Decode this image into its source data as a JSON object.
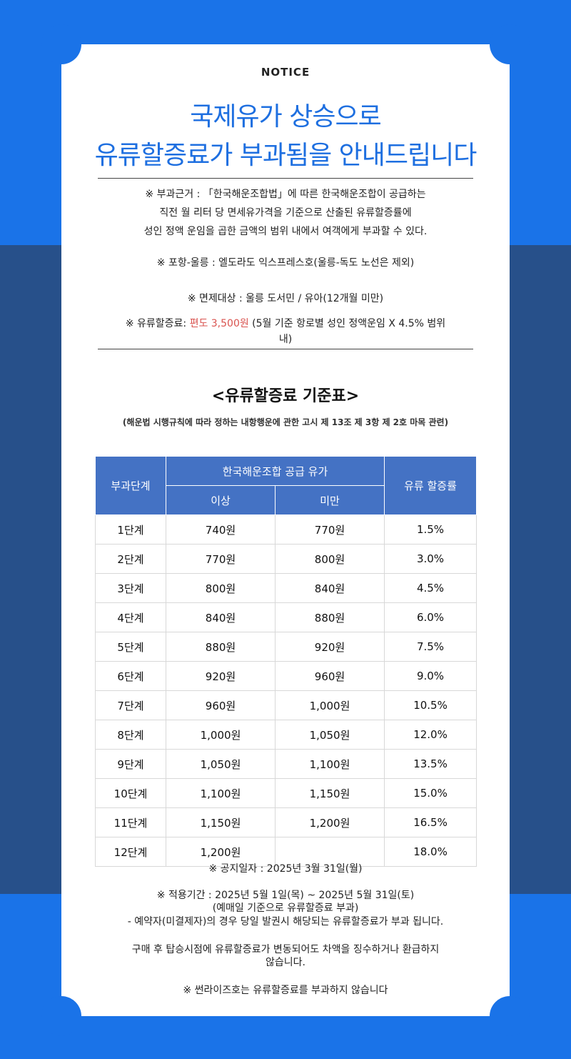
{
  "header": {
    "notice": "NOTICE",
    "title_line1": "국제유가 상승으로",
    "title_line2": "유류할증료가 부과됨을 안내드립니다"
  },
  "info": {
    "basis_line1": "※ 부과근거 : 「한국해운조합법」에 따른 한국해운조합이 공급하는",
    "basis_line2": "직전 월 리터 당 면세유가격을 기준으로 산출된 유류할증률에",
    "basis_line3": "성인 정액 운임을 곱한 금액의 범위 내에서 여객에게 부과할 수 있다.",
    "route": "※ 포항-울릉 : 엘도라도 익스프레스호(울릉-독도 노선은 제외)",
    "exempt": "※ 면제대상 : 울릉 도서민 / 유아(12개월 미만)",
    "surcharge_prefix": "※ 유류할증료: ",
    "surcharge_amount": "편도 3,500원",
    "surcharge_suffix": " (5월 기준 항로별 성인 정액운임 X 4.5% 범위",
    "surcharge_suffix2": "내)"
  },
  "table": {
    "title": "<유류할증료 기준표>",
    "note": "(해운법 시행규칙에 따라 정하는 내항행운에 관한 고시 제 13조 제 3항 제 2호 마목 관련)",
    "headers": {
      "stage": "부과단계",
      "price": "한국해운조합 공급 유가",
      "min": "이상",
      "max": "미만",
      "rate": "유류 할증률"
    },
    "rows": [
      {
        "stage": "1단계",
        "min": "740원",
        "max": "770원",
        "rate": "1.5%"
      },
      {
        "stage": "2단계",
        "min": "770원",
        "max": "800원",
        "rate": "3.0%"
      },
      {
        "stage": "3단계",
        "min": "800원",
        "max": "840원",
        "rate": "4.5%"
      },
      {
        "stage": "4단계",
        "min": "840원",
        "max": "880원",
        "rate": "6.0%"
      },
      {
        "stage": "5단계",
        "min": "880원",
        "max": "920원",
        "rate": "7.5%"
      },
      {
        "stage": "6단계",
        "min": "920원",
        "max": "960원",
        "rate": "9.0%"
      },
      {
        "stage": "7단계",
        "min": "960원",
        "max": "1,000원",
        "rate": "10.5%"
      },
      {
        "stage": "8단계",
        "min": "1,000원",
        "max": "1,050원",
        "rate": "12.0%"
      },
      {
        "stage": "9단계",
        "min": "1,050원",
        "max": "1,100원",
        "rate": "13.5%"
      },
      {
        "stage": "10단계",
        "min": "1,100원",
        "max": "1,150원",
        "rate": "15.0%"
      },
      {
        "stage": "11단계",
        "min": "1,150원",
        "max": "1,200원",
        "rate": "16.5%"
      },
      {
        "stage": "12단계",
        "min": "1,200원",
        "max": "",
        "rate": "18.0%"
      }
    ]
  },
  "footer": {
    "announce_date": "※ 공지일자 : 2025년 3월 31일(월)",
    "period": "※ 적용기간 : 2025년 5월 1일(목) ~ 2025년 5월 31일(토)",
    "period_note": "(예매일 기준으로 유류할증료 부과)",
    "reserve_note": "- 예약자(미결제자)의 경우 당일 발권시 해당되는 유류할증료가 부과 됩니다.",
    "refund_line1": "구매 후 탑승시점에 유류할증료가 변동되어도 차액을 징수하거나 환급하지",
    "refund_line2": "않습니다.",
    "sunrise": "※ 썬라이즈호는 유류할증료를 부과하지 않습니다"
  }
}
